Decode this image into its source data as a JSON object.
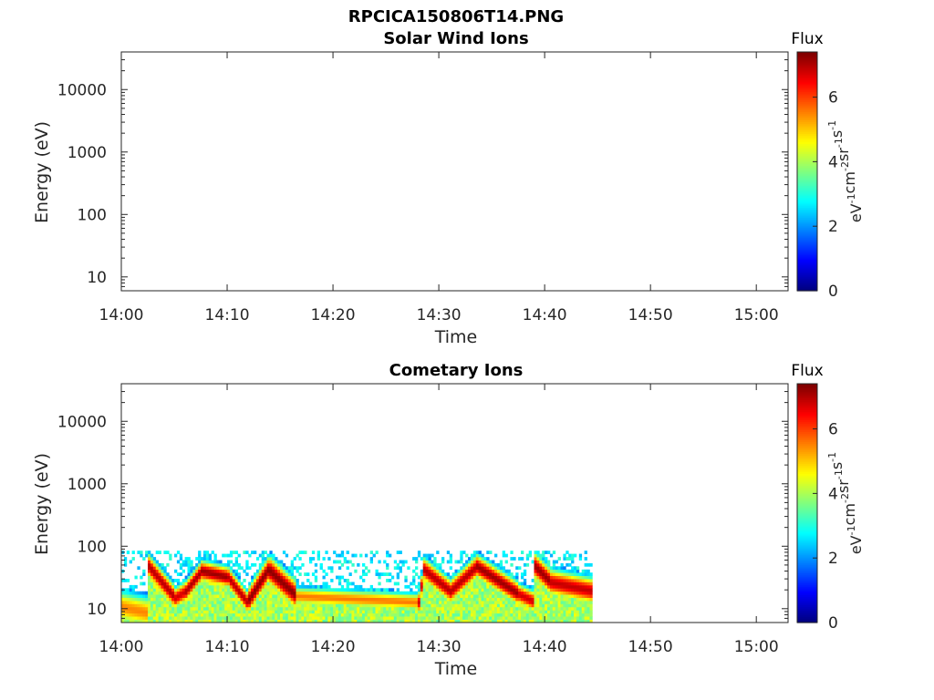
{
  "figure_title": "RPCICA150806T14.PNG",
  "colorbar": {
    "title": "Flux",
    "label": "eV^-1 cm^-2 sr^-1 s^-1",
    "ticks": [
      "0",
      "2",
      "4",
      "6"
    ],
    "range": [
      0,
      7.4
    ],
    "colormap": "jet"
  },
  "chart_data": [
    {
      "type": "heatmap",
      "title": "Solar Wind Ions",
      "xlabel": "Time",
      "ylabel": "Energy (eV)",
      "x_ticks": [
        "14:00",
        "14:10",
        "14:20",
        "14:30",
        "14:40",
        "14:50",
        "15:00"
      ],
      "y_ticks": [
        "10",
        "100",
        "1000",
        "10000"
      ],
      "y_scale": "log",
      "xlim": [
        "14:00",
        "15:03"
      ],
      "ylim": [
        6,
        40000
      ],
      "grid": false,
      "segments": []
    },
    {
      "type": "heatmap",
      "title": "Cometary Ions",
      "xlabel": "Time",
      "ylabel": "Energy (eV)",
      "x_ticks": [
        "14:00",
        "14:10",
        "14:20",
        "14:30",
        "14:40",
        "14:50",
        "15:00"
      ],
      "y_ticks": [
        "10",
        "100",
        "1000",
        "10000"
      ],
      "y_scale": "log",
      "xlim": [
        "14:00",
        "15:03"
      ],
      "ylim": [
        6,
        40000
      ],
      "grid": false,
      "data_end_time": "14:44.5",
      "background_upper_energy": 80,
      "segments": [
        {
          "t0": "14:00.0",
          "t1": "14:02.5",
          "e0": 10,
          "e1": 8,
          "peak": 5.5,
          "width": 0.25
        },
        {
          "t0": "14:02.5",
          "t1": "14:05.0",
          "e0": 45,
          "e1": 14,
          "peak": 7.0,
          "width": 0.18
        },
        {
          "t0": "14:05.0",
          "t1": "14:06.0",
          "e0": 14,
          "e1": 18,
          "peak": 6.8,
          "width": 0.16
        },
        {
          "t0": "14:06.0",
          "t1": "14:07.5",
          "e0": 18,
          "e1": 38,
          "peak": 7.1,
          "width": 0.16
        },
        {
          "t0": "14:07.5",
          "t1": "14:10.0",
          "e0": 38,
          "e1": 30,
          "peak": 7.2,
          "width": 0.16
        },
        {
          "t0": "14:10.0",
          "t1": "14:11.8",
          "e0": 30,
          "e1": 12,
          "peak": 7.0,
          "width": 0.16
        },
        {
          "t0": "14:11.8",
          "t1": "14:13.8",
          "e0": 12,
          "e1": 40,
          "peak": 7.3,
          "width": 0.2
        },
        {
          "t0": "14:13.8",
          "t1": "14:16.5",
          "e0": 40,
          "e1": 15,
          "peak": 7.3,
          "width": 0.22
        },
        {
          "t0": "14:16.5",
          "t1": "14:28.0",
          "e0": 15,
          "e1": 12,
          "peak": 5.6,
          "width": 0.14
        },
        {
          "t0": "14:28.0",
          "t1": "14:28.5",
          "e0": 12,
          "e1": 40,
          "peak": 6.8,
          "width": 0.16
        },
        {
          "t0": "14:28.5",
          "t1": "14:31.0",
          "e0": 40,
          "e1": 18,
          "peak": 7.0,
          "width": 0.18
        },
        {
          "t0": "14:31.0",
          "t1": "14:33.5",
          "e0": 18,
          "e1": 45,
          "peak": 7.0,
          "width": 0.18
        },
        {
          "t0": "14:33.5",
          "t1": "14:37.5",
          "e0": 45,
          "e1": 16,
          "peak": 7.2,
          "width": 0.18
        },
        {
          "t0": "14:37.5",
          "t1": "14:39.0",
          "e0": 16,
          "e1": 12,
          "peak": 6.8,
          "width": 0.16
        },
        {
          "t0": "14:39.0",
          "t1": "14:40.5",
          "e0": 45,
          "e1": 25,
          "peak": 7.2,
          "width": 0.2
        },
        {
          "t0": "14:40.5",
          "t1": "14:44.5",
          "e0": 25,
          "e1": 18,
          "peak": 6.9,
          "width": 0.2
        }
      ]
    }
  ]
}
